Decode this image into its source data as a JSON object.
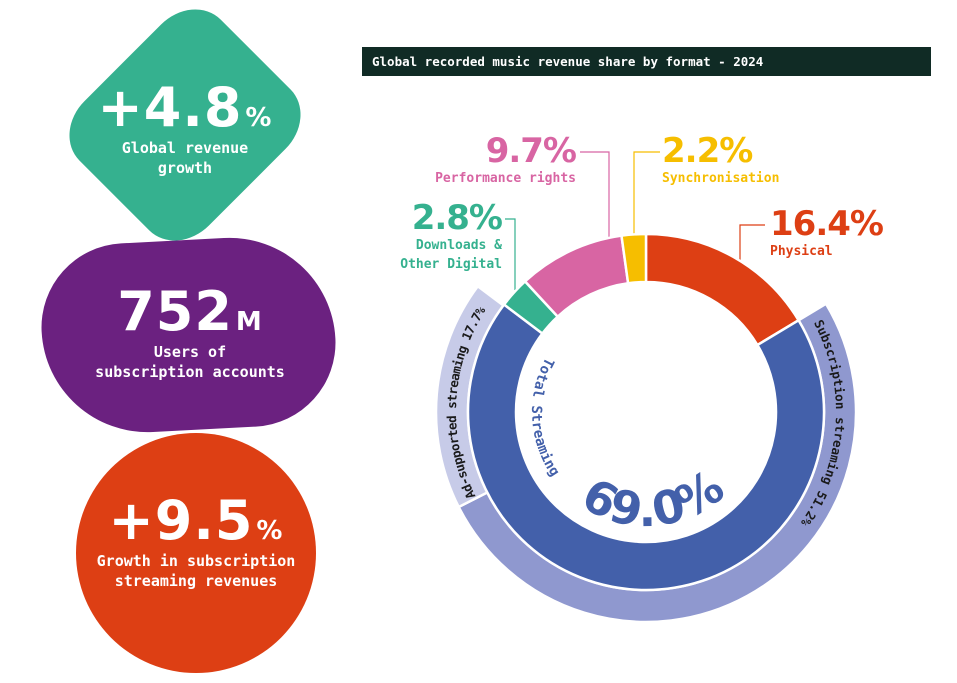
{
  "stats": [
    {
      "value": "+4.8",
      "unit": "%",
      "label_lines": [
        "Global revenue",
        "growth"
      ],
      "color": "#35b18f"
    },
    {
      "value": "752",
      "unit": "M",
      "label_lines": [
        "Users of",
        "subscription accounts"
      ],
      "color": "#6b2180"
    },
    {
      "value": "+9.5",
      "unit": "%",
      "label_lines": [
        "Growth in subscription",
        "streaming revenues"
      ],
      "color": "#dd3f14"
    }
  ],
  "chart_data": {
    "type": "pie",
    "title": "Global recorded music revenue share by format - 2024",
    "inner_ring": [
      {
        "name": "Physical",
        "value": 16.4,
        "label": "16.4%",
        "color": "#dd3f14"
      },
      {
        "name": "Total Streaming",
        "value": 69.0,
        "label": "69.0%",
        "color": "#4360aa"
      },
      {
        "name": "Downloads & Other Digital",
        "value": 2.8,
        "label": "2.8%",
        "color": "#35b18f"
      },
      {
        "name": "Performance rights",
        "value": 9.7,
        "label": "9.7%",
        "color": "#d865a3"
      },
      {
        "name": "Synchronisation",
        "value": 2.2,
        "label": "2.2%",
        "color": "#f6be00"
      }
    ],
    "outer_ring": [
      {
        "name": "Subscription streaming",
        "value": 51.2,
        "label": "Subscription streaming 51.2%",
        "color": "#8f98cf"
      },
      {
        "name": "Ad-supported streaming",
        "value": 17.7,
        "label": "Ad-supported streaming 17.7%",
        "color": "#c7cbe8"
      }
    ],
    "labels": {
      "downloads_line1": "Downloads &",
      "downloads_line2": "Other Digital"
    }
  }
}
